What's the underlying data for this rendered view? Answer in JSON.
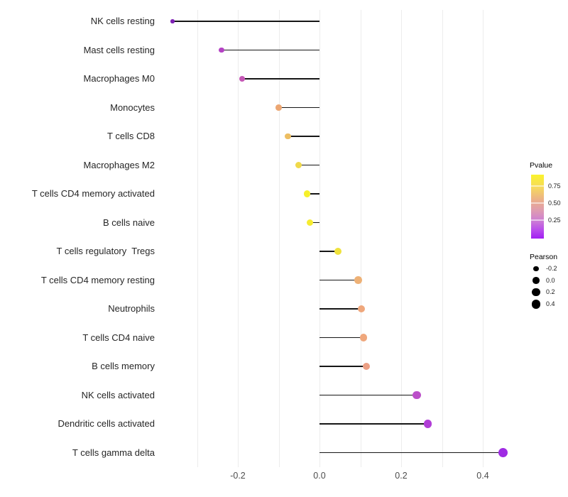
{
  "chart_data": {
    "type": "lollipop",
    "title": "",
    "xlabel": "",
    "ylabel": "",
    "x_axis": {
      "ticks": [
        {
          "label": "-0.2",
          "value": -0.2
        },
        {
          "label": "0.0",
          "value": 0.0
        },
        {
          "label": "0.2",
          "value": 0.2
        },
        {
          "label": "0.4",
          "value": 0.4
        }
      ],
      "gridline_values": [
        -0.3,
        -0.2,
        -0.1,
        0.0,
        0.1,
        0.2,
        0.3,
        0.4
      ],
      "range": [
        -0.39,
        0.465
      ],
      "grid": "on"
    },
    "rows": [
      {
        "category": "NK cells resting",
        "pearson": -0.36,
        "color": "#7E22B5"
      },
      {
        "category": "Mast cells resting",
        "pearson": -0.24,
        "color": "#B442C4"
      },
      {
        "category": "Macrophages M0",
        "pearson": -0.19,
        "color": "#C558B6"
      },
      {
        "category": "Monocytes",
        "pearson": -0.1,
        "color": "#ECA672"
      },
      {
        "category": "T cells CD8",
        "pearson": -0.078,
        "color": "#EDBE62"
      },
      {
        "category": "Macrophages M2",
        "pearson": -0.051,
        "color": "#F0D94A"
      },
      {
        "category": "T cells CD4 memory activated",
        "pearson": -0.03,
        "color": "#F6F02B"
      },
      {
        "category": "B cells naive",
        "pearson": -0.024,
        "color": "#F6EC31"
      },
      {
        "category": "T cells regulatory  Tregs",
        "pearson": 0.045,
        "color": "#EFE23C"
      },
      {
        "category": "T cells CD4 memory resting",
        "pearson": 0.095,
        "color": "#EEB176"
      },
      {
        "category": "Neutrophils",
        "pearson": 0.103,
        "color": "#EFA77C"
      },
      {
        "category": "T cells CD4 naive",
        "pearson": 0.108,
        "color": "#EFA77C"
      },
      {
        "category": "B cells memory",
        "pearson": 0.115,
        "color": "#EB9F84"
      },
      {
        "category": "NK cells activated",
        "pearson": 0.238,
        "color": "#BB4FC9"
      },
      {
        "category": "Dendritic cells activated",
        "pearson": 0.265,
        "color": "#B13ED7"
      },
      {
        "category": "T cells gamma delta",
        "pearson": 0.45,
        "color": "#9F2BE3"
      }
    ],
    "legend": {
      "pvalue": {
        "title": "Pvalue",
        "tick_labels": [
          "0.75",
          "0.50",
          "0.25"
        ],
        "gradient": [
          {
            "color": "#FAF32B",
            "stop": 0
          },
          {
            "color": "#F6D95E",
            "stop": 20
          },
          {
            "color": "#EBAF8A",
            "stop": 40
          },
          {
            "color": "#DE9BB3",
            "stop": 57
          },
          {
            "color": "#CD7FD4",
            "stop": 72
          },
          {
            "color": "#B84BEC",
            "stop": 87
          },
          {
            "color": "#A11EF2",
            "stop": 100
          }
        ]
      },
      "pearson": {
        "title": "Pearson",
        "entries": [
          {
            "label": "-0.2",
            "value": -0.2
          },
          {
            "label": "0.0",
            "value": 0.0
          },
          {
            "label": "0.2",
            "value": 0.2
          },
          {
            "label": "0.4",
            "value": 0.4
          }
        ]
      }
    }
  }
}
